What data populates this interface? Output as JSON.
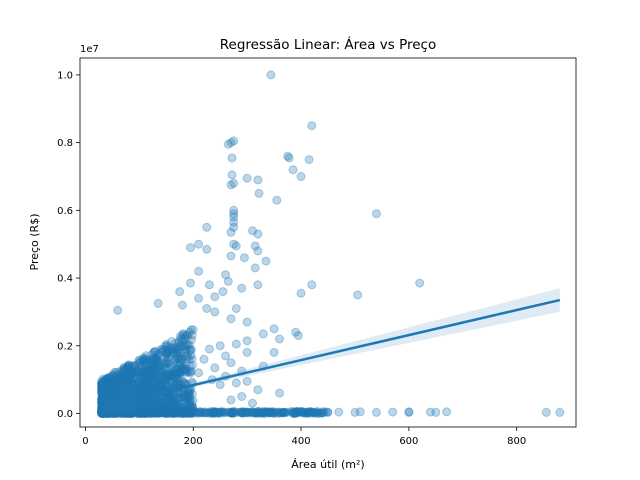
{
  "chart_data": {
    "type": "scatter",
    "title": "Regressão Linear: Área vs Preço",
    "xlabel": "Área útil (m²)",
    "ylabel": "Preço (R$)",
    "y_offset_label": "1e7",
    "xlim": [
      -10,
      910
    ],
    "ylim": [
      -400000,
      10500000
    ],
    "x_ticks": [
      0,
      200,
      400,
      600,
      800
    ],
    "x_tick_labels": [
      "0",
      "200",
      "400",
      "600",
      "800"
    ],
    "y_ticks": [
      0,
      2000000,
      4000000,
      6000000,
      8000000,
      10000000
    ],
    "y_tick_labels": [
      "0.0",
      "0.2",
      "0.4",
      "0.6",
      "0.8",
      "1.0"
    ],
    "grid": false,
    "legend": "none",
    "colors": {
      "points": "#1f77b4",
      "line": "#1f77b4",
      "band": "#1f77b4"
    },
    "regression": {
      "x": [
        30,
        880
      ],
      "y": [
        210000,
        3350000
      ],
      "ci_upper_end": 3700000,
      "ci_lower_end": 3000000
    },
    "series": [
      {
        "points": [
          [
            344,
            10000000
          ],
          [
            420,
            8500000
          ],
          [
            270,
            8000000
          ],
          [
            275,
            8050000
          ],
          [
            265,
            7950000
          ],
          [
            375,
            7600000
          ],
          [
            378,
            7550000
          ],
          [
            415,
            7500000
          ],
          [
            272,
            7550000
          ],
          [
            385,
            7200000
          ],
          [
            400,
            7000000
          ],
          [
            272,
            7050000
          ],
          [
            300,
            6950000
          ],
          [
            320,
            6900000
          ],
          [
            275,
            6800000
          ],
          [
            270,
            6750000
          ],
          [
            322,
            6500000
          ],
          [
            355,
            6300000
          ],
          [
            275,
            6000000
          ],
          [
            275,
            5900000
          ],
          [
            540,
            5900000
          ],
          [
            275,
            5800000
          ],
          [
            275,
            5650000
          ],
          [
            275,
            5500000
          ],
          [
            225,
            5500000
          ],
          [
            310,
            5400000
          ],
          [
            270,
            5350000
          ],
          [
            320,
            5300000
          ],
          [
            210,
            5000000
          ],
          [
            275,
            5000000
          ],
          [
            280,
            4950000
          ],
          [
            315,
            4950000
          ],
          [
            195,
            4900000
          ],
          [
            225,
            4850000
          ],
          [
            320,
            4800000
          ],
          [
            270,
            4650000
          ],
          [
            295,
            4600000
          ],
          [
            335,
            4500000
          ],
          [
            315,
            4300000
          ],
          [
            210,
            4200000
          ],
          [
            260,
            4100000
          ],
          [
            265,
            3900000
          ],
          [
            620,
            3850000
          ],
          [
            195,
            3850000
          ],
          [
            230,
            3800000
          ],
          [
            420,
            3800000
          ],
          [
            320,
            3800000
          ],
          [
            290,
            3700000
          ],
          [
            255,
            3600000
          ],
          [
            175,
            3600000
          ],
          [
            400,
            3550000
          ],
          [
            505,
            3500000
          ],
          [
            240,
            3450000
          ],
          [
            210,
            3400000
          ],
          [
            135,
            3250000
          ],
          [
            180,
            3200000
          ],
          [
            60,
            3050000
          ],
          [
            225,
            3100000
          ],
          [
            280,
            3100000
          ],
          [
            240,
            3000000
          ],
          [
            270,
            2800000
          ],
          [
            300,
            2700000
          ],
          [
            350,
            2500000
          ],
          [
            390,
            2400000
          ],
          [
            330,
            2350000
          ],
          [
            395,
            2300000
          ],
          [
            360,
            2200000
          ],
          [
            300,
            2150000
          ],
          [
            280,
            2050000
          ],
          [
            250,
            2000000
          ],
          [
            230,
            1900000
          ],
          [
            300,
            1800000
          ],
          [
            260,
            1700000
          ],
          [
            350,
            1800000
          ],
          [
            220,
            1600000
          ],
          [
            270,
            1500000
          ],
          [
            240,
            1350000
          ],
          [
            330,
            1400000
          ],
          [
            290,
            1250000
          ],
          [
            210,
            1200000
          ],
          [
            260,
            1100000
          ],
          [
            235,
            1000000
          ],
          [
            300,
            950000
          ],
          [
            280,
            900000
          ],
          [
            250,
            850000
          ],
          [
            320,
            700000
          ],
          [
            360,
            600000
          ],
          [
            290,
            500000
          ],
          [
            270,
            400000
          ],
          [
            310,
            300000
          ],
          [
            880,
            30000
          ],
          [
            855,
            30000
          ],
          [
            670,
            50000
          ],
          [
            640,
            40000
          ],
          [
            600,
            30000
          ],
          [
            570,
            40000
          ],
          [
            540,
            30000
          ],
          [
            510,
            50000
          ],
          [
            470,
            40000
          ],
          [
            450,
            30000
          ],
          [
            420,
            40000
          ],
          [
            390,
            30000
          ],
          [
            360,
            40000
          ],
          [
            340,
            30000
          ],
          [
            300,
            40000
          ],
          [
            500,
            30000
          ],
          [
            600,
            50000
          ],
          [
            650,
            30000
          ]
        ]
      }
    ]
  }
}
